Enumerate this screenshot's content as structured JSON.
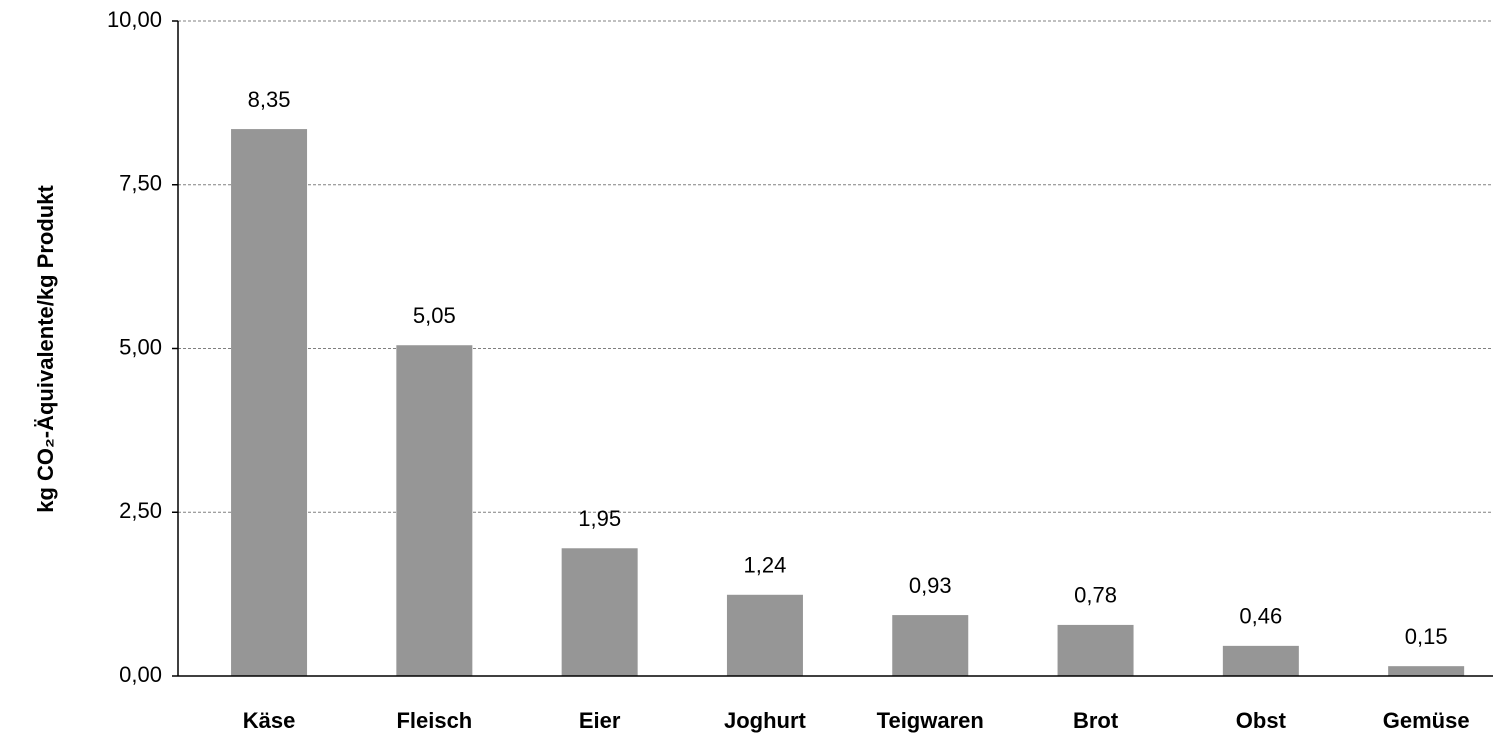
{
  "chart_data": {
    "type": "bar",
    "y_label": "kg CO₂-Äquivalente/kg Produkt",
    "categories": [
      "Käse",
      "Fleisch",
      "Eier",
      "Joghurt",
      "Teigwaren",
      "Brot",
      "Obst",
      "Gemüse"
    ],
    "values": [
      8.35,
      5.05,
      1.95,
      1.24,
      0.93,
      0.78,
      0.46,
      0.15
    ],
    "value_labels": [
      "8,35",
      "5,05",
      "1,95",
      "1,24",
      "0,93",
      "0,78",
      "0,46",
      "0,15"
    ],
    "color": "#969696",
    "ylim": [
      0,
      10
    ],
    "yticks": [
      {
        "value": 0,
        "label": "0,00"
      },
      {
        "value": 2.5,
        "label": "2,50"
      },
      {
        "value": 5,
        "label": "5,00"
      },
      {
        "value": 7.5,
        "label": "7,50"
      },
      {
        "value": 10,
        "label": "10,00"
      }
    ],
    "grid": true
  }
}
